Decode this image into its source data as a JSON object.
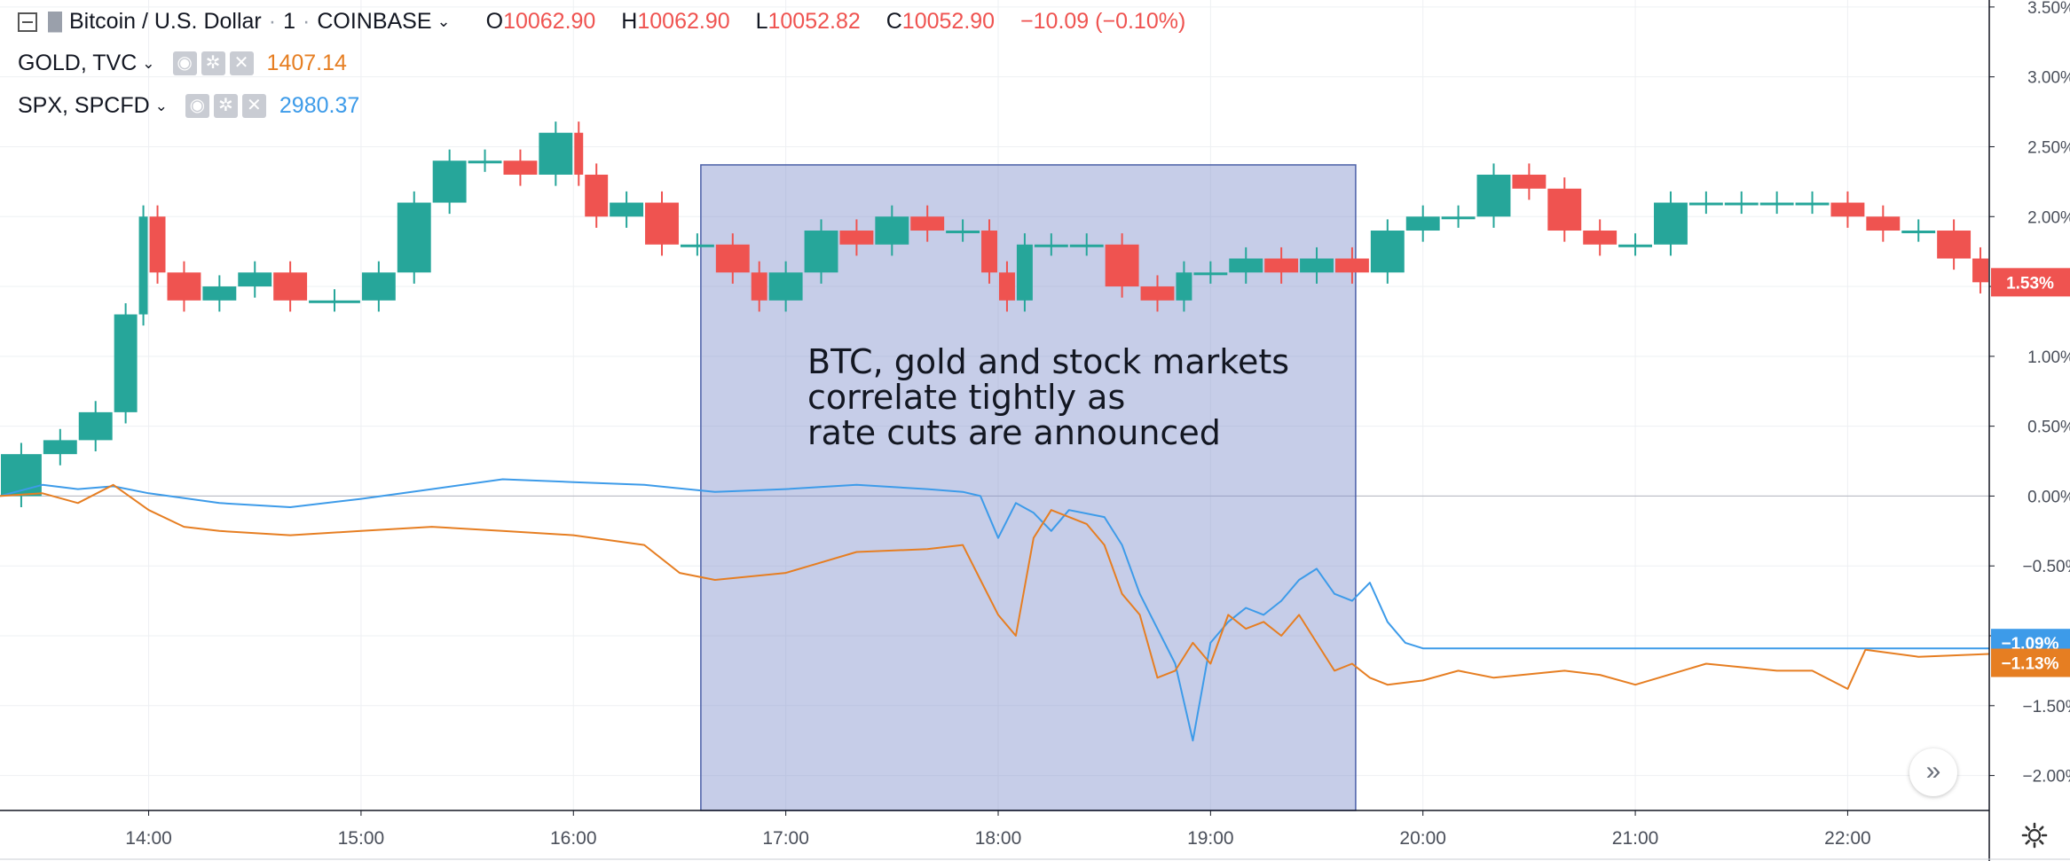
{
  "header": {
    "symbol": "Bitcoin / U.S. Dollar",
    "sep1": "·",
    "interval": "1",
    "sep2": "·",
    "exchange": "COINBASE",
    "chevron": "⌄",
    "open_label": "O",
    "open": "10062.90",
    "high_label": "H",
    "high": "10062.90",
    "low_label": "L",
    "low": "10052.82",
    "close_label": "C",
    "close": "10052.90",
    "change": "−10.09 (−0.10%)"
  },
  "overlays": [
    {
      "name": "GOLD, TVC",
      "value": "1407.14",
      "color": "#e67e22"
    },
    {
      "name": "SPX, SPCFD",
      "value": "2980.37",
      "color": "#3d9be9"
    }
  ],
  "annotation": "BTC, gold and stock markets\ncorrelate tightly as\nrate cuts are announced",
  "colors": {
    "up": "#26a69a",
    "down": "#ef5350",
    "gold": "#e67e22",
    "spx": "#3d9be9",
    "highlight": "#8091cc",
    "highlight_border": "#4a5fa7"
  },
  "icons": [
    "collapse-icon",
    "flag-icon",
    "eye-icon",
    "gear-icon",
    "close-icon",
    "scroll-right-icon"
  ],
  "chart_data": {
    "type": "line",
    "xlabel": "",
    "ylabel": "",
    "x_ticks": [
      "14:00",
      "15:00",
      "16:00",
      "17:00",
      "18:00",
      "19:00",
      "20:00",
      "21:00",
      "22:00"
    ],
    "y_ticks": [
      "3.50%",
      "3.00%",
      "2.50%",
      "2.00%",
      "1.50%",
      "1.00%",
      "0.50%",
      "0.00%",
      "−0.50%",
      "−1.00%",
      "−1.50%",
      "−2.00%"
    ],
    "ylim": [
      -2.25,
      3.55
    ],
    "xlim": [
      "13:18",
      "22:40"
    ],
    "highlight_range": {
      "x_start": "16:36",
      "x_end": "19:41",
      "y_top": 2.37,
      "y_bottom": -2.25
    },
    "series": [
      {
        "name": "Bitcoin / U.S. Dollar",
        "style": "candles",
        "x": [
          "13:18",
          "13:30",
          "13:40",
          "13:50",
          "13:57",
          "14:00",
          "14:05",
          "14:15",
          "14:25",
          "14:35",
          "14:45",
          "15:00",
          "15:10",
          "15:20",
          "15:30",
          "15:40",
          "15:50",
          "16:00",
          "16:03",
          "16:10",
          "16:20",
          "16:30",
          "16:40",
          "16:50",
          "16:55",
          "17:05",
          "17:15",
          "17:25",
          "17:35",
          "17:45",
          "17:55",
          "18:00",
          "18:05",
          "18:10",
          "18:20",
          "18:30",
          "18:40",
          "18:50",
          "18:55",
          "19:05",
          "19:15",
          "19:25",
          "19:35",
          "19:45",
          "19:55",
          "20:05",
          "20:15",
          "20:25",
          "20:35",
          "20:45",
          "20:55",
          "21:05",
          "21:15",
          "21:25",
          "21:35",
          "21:45",
          "21:55",
          "22:05",
          "22:15",
          "22:25",
          "22:35",
          "22:40"
        ],
        "values": [
          0.0,
          0.3,
          0.4,
          0.6,
          1.3,
          2.0,
          1.6,
          1.4,
          1.5,
          1.6,
          1.4,
          1.4,
          1.6,
          2.1,
          2.4,
          2.4,
          2.3,
          2.6,
          2.3,
          2.0,
          2.1,
          1.8,
          1.8,
          1.6,
          1.4,
          1.6,
          1.9,
          1.8,
          2.0,
          1.9,
          1.9,
          1.6,
          1.4,
          1.8,
          1.8,
          1.8,
          1.5,
          1.4,
          1.6,
          1.6,
          1.7,
          1.6,
          1.7,
          1.6,
          1.9,
          2.0,
          2.0,
          2.3,
          2.2,
          1.9,
          1.8,
          1.8,
          2.1,
          2.1,
          2.1,
          2.1,
          2.1,
          2.0,
          1.9,
          1.9,
          1.7,
          1.53
        ]
      },
      {
        "name": "SPX, SPCFD",
        "style": "line",
        "x": [
          "13:18",
          "13:30",
          "13:40",
          "13:50",
          "14:00",
          "14:20",
          "14:40",
          "15:00",
          "15:20",
          "15:40",
          "16:00",
          "16:20",
          "16:40",
          "17:00",
          "17:20",
          "17:40",
          "17:50",
          "17:55",
          "18:00",
          "18:05",
          "18:10",
          "18:15",
          "18:20",
          "18:30",
          "18:35",
          "18:40",
          "18:45",
          "18:50",
          "18:55",
          "19:00",
          "19:05",
          "19:10",
          "19:15",
          "19:20",
          "19:25",
          "19:30",
          "19:35",
          "19:40",
          "19:45",
          "19:50",
          "19:55",
          "20:00",
          "20:30",
          "21:00",
          "21:30",
          "22:00",
          "22:40"
        ],
        "values": [
          0.0,
          0.08,
          0.05,
          0.07,
          0.02,
          -0.05,
          -0.08,
          -0.02,
          0.05,
          0.12,
          0.1,
          0.08,
          0.03,
          0.05,
          0.08,
          0.05,
          0.03,
          0.0,
          -0.3,
          -0.05,
          -0.12,
          -0.25,
          -0.1,
          -0.15,
          -0.35,
          -0.7,
          -0.95,
          -1.2,
          -1.75,
          -1.05,
          -0.9,
          -0.8,
          -0.85,
          -0.75,
          -0.6,
          -0.52,
          -0.7,
          -0.75,
          -0.62,
          -0.9,
          -1.05,
          -1.09,
          -1.09,
          -1.09,
          -1.09,
          -1.09,
          -1.09
        ]
      },
      {
        "name": "GOLD, TVC",
        "style": "line",
        "x": [
          "13:18",
          "13:30",
          "13:40",
          "13:50",
          "14:00",
          "14:10",
          "14:20",
          "14:40",
          "15:00",
          "15:20",
          "15:40",
          "16:00",
          "16:20",
          "16:30",
          "16:40",
          "17:00",
          "17:20",
          "17:40",
          "17:50",
          "17:55",
          "18:00",
          "18:05",
          "18:10",
          "18:15",
          "18:20",
          "18:25",
          "18:30",
          "18:35",
          "18:40",
          "18:45",
          "18:50",
          "18:55",
          "19:00",
          "19:05",
          "19:10",
          "19:15",
          "19:20",
          "19:25",
          "19:30",
          "19:35",
          "19:40",
          "19:45",
          "19:50",
          "20:00",
          "20:10",
          "20:20",
          "20:40",
          "20:50",
          "21:00",
          "21:20",
          "21:40",
          "21:50",
          "22:00",
          "22:05",
          "22:20",
          "22:40"
        ],
        "values": [
          0.0,
          0.02,
          -0.05,
          0.08,
          -0.1,
          -0.22,
          -0.25,
          -0.28,
          -0.25,
          -0.22,
          -0.25,
          -0.28,
          -0.35,
          -0.55,
          -0.6,
          -0.55,
          -0.4,
          -0.38,
          -0.35,
          -0.6,
          -0.85,
          -1.0,
          -0.3,
          -0.1,
          -0.15,
          -0.2,
          -0.35,
          -0.7,
          -0.85,
          -1.3,
          -1.25,
          -1.05,
          -1.2,
          -0.85,
          -0.95,
          -0.9,
          -1.0,
          -0.85,
          -1.05,
          -1.25,
          -1.2,
          -1.3,
          -1.35,
          -1.32,
          -1.25,
          -1.3,
          -1.25,
          -1.28,
          -1.35,
          -1.2,
          -1.25,
          -1.25,
          -1.38,
          -1.1,
          -1.15,
          -1.13
        ]
      }
    ],
    "last_value_labels": [
      {
        "series": "Bitcoin / U.S. Dollar",
        "text": "1.53%",
        "value": 1.53,
        "color": "#ef5350"
      },
      {
        "series": "SPX, SPCFD",
        "text": "−1.09%",
        "value": -1.09,
        "color": "#3d9be9"
      },
      {
        "series": "GOLD, TVC",
        "text": "−1.13%",
        "value": -1.13,
        "color": "#e67e22"
      }
    ],
    "grid": true,
    "scale": "percent"
  }
}
